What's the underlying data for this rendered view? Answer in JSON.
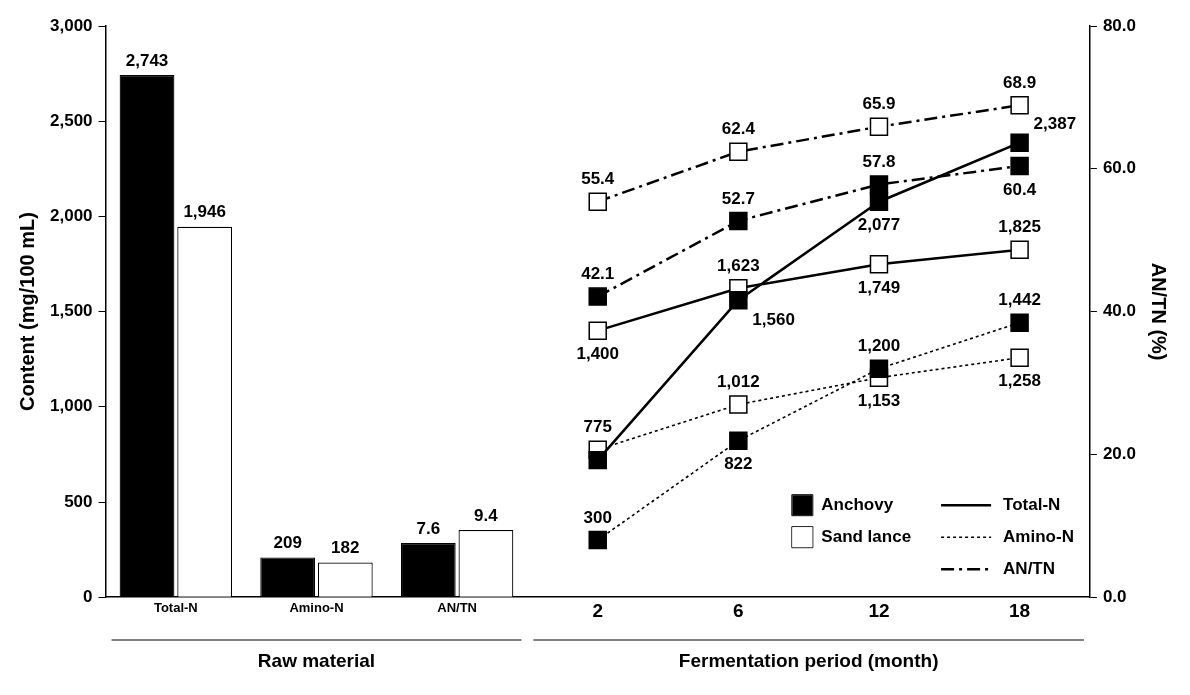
{
  "chart_data": {
    "type": "line",
    "categories": [
      "Total-N",
      "Amino-N",
      "AN/TN",
      "2",
      "6",
      "12",
      "18"
    ],
    "xlabel": "Fermentation period (month)",
    "ylabel": "Content (mg/100 mL)",
    "y2label": "AN/TN (%)",
    "annotations": [
      "Raw material"
    ],
    "ylim": [
      0,
      3000
    ],
    "yticks": [
      0,
      500,
      {
        "value": 1000,
        "label": "1,000"
      },
      {
        "value": 1500,
        "label": "1,500"
      },
      {
        "value": 2000,
        "label": "2,000"
      },
      {
        "value": 2500,
        "label": "2,500"
      },
      {
        "value": 3000,
        "label": "3,000"
      }
    ],
    "y2lim": [
      0,
      80
    ],
    "y2ticks": [
      {
        "value": 0,
        "label": "0.0"
      },
      {
        "value": 20,
        "label": "20.0"
      },
      {
        "value": 40,
        "label": "40.0"
      },
      {
        "value": 60,
        "label": "60.0"
      },
      {
        "value": 80,
        "label": "80.0"
      }
    ],
    "grid": false,
    "legend": "bottom right",
    "marker": "square",
    "series": [
      {
        "type": "bar",
        "name": "Anchovy",
        "color": "#000000",
        "values": [
          2743,
          209,
          null,
          null,
          null,
          null,
          null
        ],
        "value_labels": [
          "2,743",
          "209",
          null,
          null,
          null,
          null,
          null
        ]
      },
      {
        "type": "bar",
        "name": "Sand lance",
        "color": "#ffffff",
        "values": [
          1946,
          182,
          null,
          null,
          null,
          null,
          null
        ],
        "value_labels": [
          "1,946",
          "182",
          null,
          null,
          null,
          null,
          null
        ]
      },
      {
        "type": "bar",
        "color": "#000000",
        "axis": "y2",
        "values": [
          null,
          null,
          7.6,
          null,
          null,
          null,
          null
        ],
        "value_labels": [
          null,
          null,
          "7.6",
          null,
          null,
          null,
          null
        ]
      },
      {
        "type": "bar",
        "color": "#ffffff",
        "axis": "y2",
        "values": [
          null,
          null,
          9.4,
          null,
          null,
          null,
          null
        ],
        "value_labels": [
          null,
          null,
          "9.4",
          null,
          null,
          null,
          null
        ]
      },
      {
        "name": "Total-N",
        "color": "#000000",
        "line_style": "solid",
        "colors": [
          "#000000",
          "#000000",
          "#000000",
          "#000000",
          "#000000",
          "#000000",
          "#000000"
        ],
        "values": [
          null,
          null,
          null,
          720,
          1560,
          2077,
          2387
        ],
        "value_labels": [
          null,
          null,
          null,
          null,
          "1,560",
          "2,077",
          "2,387"
        ]
      },
      {
        "color": "#000000",
        "line_style": "solid",
        "colors": [
          "#ffffff",
          "#ffffff",
          "#ffffff",
          "#ffffff",
          "#ffffff",
          "#ffffff",
          "#ffffff"
        ],
        "values": [
          null,
          null,
          null,
          1400,
          1623,
          1749,
          1825
        ],
        "value_labels": [
          null,
          null,
          null,
          "1,400",
          "1,623",
          "1,749",
          "1,825"
        ]
      },
      {
        "name": "Amino-N",
        "color": "#000000",
        "line_style": "dotted",
        "colors": [
          "#000000",
          "#000000",
          "#000000",
          "#000000",
          "#000000",
          "#000000",
          "#000000"
        ],
        "values": [
          null,
          null,
          null,
          300,
          822,
          1200,
          1442
        ],
        "value_labels": [
          null,
          null,
          null,
          "300",
          "822",
          "1,200",
          "1,442"
        ]
      },
      {
        "color": "#000000",
        "line_style": "dotted",
        "colors": [
          "#ffffff",
          "#ffffff",
          "#ffffff",
          "#ffffff",
          "#ffffff",
          "#ffffff",
          "#ffffff"
        ],
        "values": [
          null,
          null,
          null,
          775,
          1012,
          1153,
          1258
        ],
        "value_labels": [
          null,
          null,
          null,
          "775",
          "1,012",
          "1,153",
          "1,258"
        ]
      },
      {
        "name": "AN/TN",
        "color": "#000000",
        "line_style": "dashed",
        "axis": "y2",
        "colors": [
          "#000000",
          "#000000",
          "#000000",
          "#000000",
          "#000000",
          "#000000",
          "#000000"
        ],
        "values": [
          null,
          null,
          null,
          42.1,
          52.7,
          57.8,
          60.4
        ],
        "value_labels": [
          null,
          null,
          null,
          "42.1",
          "52.7",
          "57.8",
          "60.4"
        ]
      },
      {
        "color": "#000000",
        "line_style": "dashed",
        "axis": "y2",
        "colors": [
          "#ffffff",
          "#ffffff",
          "#ffffff",
          "#ffffff",
          "#ffffff",
          "#ffffff",
          "#ffffff"
        ],
        "values": [
          null,
          null,
          null,
          55.4,
          62.4,
          65.9,
          68.9
        ],
        "value_labels": [
          null,
          null,
          null,
          "55.4",
          "62.4",
          "65.9",
          "68.9"
        ]
      }
    ]
  }
}
